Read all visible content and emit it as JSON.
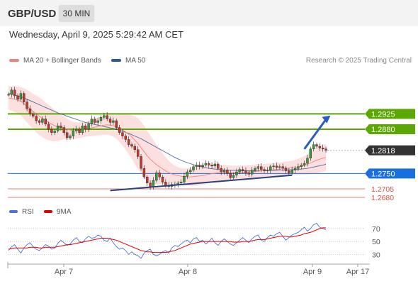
{
  "header": {
    "symbol": "GBP/USD",
    "timeframe": "30 MIN",
    "datetime": "Wednesday, April 9, 2025 5:29:42 AM CET",
    "credit": "Research © 2025 Trading Central"
  },
  "legend": {
    "ma20": "MA 20 + Bollinger Bands",
    "ma50": "MA 50"
  },
  "colors": {
    "price_up": "#3a9a3a",
    "price_down": "#c0392b",
    "green_level": "#5aa800",
    "blue_level": "#1a6fdf",
    "red_level": "#e74c3c",
    "current": "#333333",
    "ma20": "#f08080",
    "ma50": "#2f5597",
    "band": "#fbdada",
    "rsi": "#4a74d9",
    "rsi_ma": "#e00000"
  },
  "chart_data": [
    {
      "type": "line",
      "y_range": [
        1.2655,
        1.303
      ],
      "x_labels": [
        "Apr 7",
        "Apr 8",
        "Apr 9",
        "Apr 17"
      ],
      "levels": [
        {
          "value": 1.2925,
          "label": "1.2925",
          "style": "green"
        },
        {
          "value": 1.288,
          "label": "1.2880",
          "style": "green"
        },
        {
          "value": 1.2818,
          "label": "1.2818",
          "style": "current"
        },
        {
          "value": 1.275,
          "label": "1.2750",
          "style": "blue"
        },
        {
          "value": 1.2705,
          "label": "1.2705",
          "style": "red"
        },
        {
          "value": 1.268,
          "label": "1.2680",
          "style": "red"
        }
      ],
      "price": [
        1.2982,
        1.2995,
        1.2978,
        1.2968,
        1.2985,
        1.296,
        1.294,
        1.2925,
        1.2918,
        1.2905,
        1.29,
        1.291,
        1.2895,
        1.288,
        1.287,
        1.2875,
        1.289,
        1.2885,
        1.287,
        1.2855,
        1.286,
        1.2875,
        1.288,
        1.287,
        1.289,
        1.288,
        1.2895,
        1.291,
        1.29,
        1.2905,
        1.2915,
        1.292,
        1.291,
        1.29,
        1.2905,
        1.2885,
        1.287,
        1.286,
        1.285,
        1.2835,
        1.283,
        1.282,
        1.28,
        1.2765,
        1.274,
        1.2722,
        1.271,
        1.273,
        1.2752,
        1.274,
        1.2725,
        1.2715,
        1.2712,
        1.2718,
        1.2716,
        1.2722,
        1.2725,
        1.2742,
        1.2755,
        1.276,
        1.277,
        1.2775,
        1.277,
        1.2775,
        1.278,
        1.2775,
        1.2772,
        1.2778,
        1.2765,
        1.2755,
        1.276,
        1.275,
        1.2738,
        1.2745,
        1.2755,
        1.2762,
        1.2758,
        1.2752,
        1.2748,
        1.276,
        1.2765,
        1.277,
        1.2762,
        1.2758,
        1.276,
        1.277,
        1.2772,
        1.2768,
        1.277,
        1.2766,
        1.2758,
        1.2752,
        1.276,
        1.2765,
        1.277,
        1.2775,
        1.278,
        1.2795,
        1.2822,
        1.2835,
        1.283,
        1.2825,
        1.2822,
        1.2818
      ],
      "ma20": [
        1.2972,
        1.297,
        1.2968,
        1.2965,
        1.2962,
        1.2955,
        1.2948,
        1.294,
        1.2932,
        1.2925,
        1.2918,
        1.2912,
        1.2905,
        1.29,
        1.2895,
        1.289,
        1.2888,
        1.2886,
        1.2884,
        1.288,
        1.2878,
        1.2876,
        1.2876,
        1.2877,
        1.2878,
        1.288,
        1.2882,
        1.2884,
        1.2886,
        1.2888,
        1.289,
        1.2892,
        1.2893,
        1.2892,
        1.289,
        1.2887,
        1.2883,
        1.2878,
        1.2872,
        1.2865,
        1.2857,
        1.2848,
        1.2838,
        1.2826,
        1.2814,
        1.2802,
        1.2792,
        1.2784,
        1.2776,
        1.277,
        1.2764,
        1.2758,
        1.2753,
        1.2749,
        1.2746,
        1.2744,
        1.2742,
        1.2741,
        1.274,
        1.274,
        1.2741,
        1.2742,
        1.2743,
        1.2744,
        1.2746,
        1.2748,
        1.275,
        1.2751,
        1.2752,
        1.2752,
        1.2753,
        1.2753,
        1.2753,
        1.2753,
        1.2753,
        1.2754,
        1.2754,
        1.2754,
        1.2755,
        1.2755,
        1.2756,
        1.2757,
        1.2758,
        1.2758,
        1.2759,
        1.276,
        1.2761,
        1.2762,
        1.2763,
        1.2764,
        1.2765,
        1.2766,
        1.2767,
        1.2768,
        1.277,
        1.2772,
        1.2774,
        1.2777,
        1.2781,
        1.2785,
        1.2789,
        1.2792,
        1.2795,
        1.2797
      ],
      "ma50": [
        1.2985,
        1.2983,
        1.2981,
        1.2978,
        1.2975,
        1.2972,
        1.2968,
        1.2964,
        1.296,
        1.2956,
        1.2952,
        1.2948,
        1.2944,
        1.294,
        1.2936,
        1.2932,
        1.2928,
        1.2925,
        1.2922,
        1.2918,
        1.2915,
        1.2912,
        1.2909,
        1.2906,
        1.2903,
        1.29,
        1.2898,
        1.2896,
        1.2894,
        1.2892,
        1.289,
        1.2888,
        1.2886,
        1.2884,
        1.2882,
        1.288,
        1.2877,
        1.2874,
        1.2871,
        1.2868,
        1.2864,
        1.286,
        1.2856,
        1.2852,
        1.2847,
        1.2842,
        1.2837,
        1.2832,
        1.2827,
        1.2822,
        1.2817,
        1.2812,
        1.2807,
        1.2802,
        1.2797,
        1.2793,
        1.2789,
        1.2785,
        1.2782,
        1.2779,
        1.2776,
        1.2773,
        1.2771,
        1.2769,
        1.2767,
        1.2765,
        1.2764,
        1.2763,
        1.2762,
        1.2761,
        1.276,
        1.276,
        1.2759,
        1.2759,
        1.2759,
        1.2758,
        1.2758,
        1.2758,
        1.2758,
        1.2758,
        1.2758,
        1.2758,
        1.2758,
        1.2758,
        1.2758,
        1.2759,
        1.2759,
        1.2759,
        1.276,
        1.276,
        1.276,
        1.2761,
        1.2761,
        1.2762,
        1.2762,
        1.2763,
        1.2764,
        1.2765,
        1.2767,
        1.2769,
        1.2771,
        1.2773,
        1.2775,
        1.2777
      ],
      "band_width": [
        0.0035,
        0.0036,
        0.0038,
        0.004,
        0.0042,
        0.0045,
        0.0048,
        0.005,
        0.0052,
        0.0054,
        0.0055,
        0.0055,
        0.0054,
        0.0052,
        0.005,
        0.0046,
        0.0042,
        0.0038,
        0.0034,
        0.003,
        0.0028,
        0.0026,
        0.0024,
        0.0023,
        0.0022,
        0.0022,
        0.0023,
        0.0024,
        0.0025,
        0.0026,
        0.0027,
        0.0028,
        0.0029,
        0.003,
        0.0032,
        0.0035,
        0.004,
        0.0046,
        0.0052,
        0.0058,
        0.0064,
        0.007,
        0.0074,
        0.0076,
        0.0076,
        0.0074,
        0.007,
        0.0064,
        0.0058,
        0.0052,
        0.0046,
        0.004,
        0.0035,
        0.003,
        0.0027,
        0.0025,
        0.0024,
        0.0024,
        0.0025,
        0.0026,
        0.0027,
        0.0028,
        0.0028,
        0.0028,
        0.0028,
        0.0027,
        0.0026,
        0.0025,
        0.0024,
        0.0023,
        0.0022,
        0.0021,
        0.002,
        0.002,
        0.002,
        0.002,
        0.002,
        0.002,
        0.002,
        0.002,
        0.002,
        0.002,
        0.002,
        0.002,
        0.002,
        0.002,
        0.002,
        0.002,
        0.002,
        0.002,
        0.002,
        0.002,
        0.0021,
        0.0022,
        0.0023,
        0.0025,
        0.0027,
        0.003,
        0.0033,
        0.0036,
        0.0038,
        0.0039,
        0.004,
        0.004
      ],
      "trendline": [
        {
          "i": 33,
          "v": 1.27
        },
        {
          "i": 92,
          "v": 1.2745
        }
      ],
      "forecast_arrow": [
        {
          "i": 96,
          "v": 1.2822
        },
        {
          "i": 104,
          "v": 1.292
        }
      ]
    },
    {
      "type": "line",
      "title": "RSI",
      "series": [
        {
          "name": "RSI"
        },
        {
          "name": "9MA"
        }
      ],
      "y_ticks": [
        70,
        50,
        30
      ],
      "y_range": [
        15,
        83
      ],
      "rsi": [
        36,
        42,
        45,
        38,
        32,
        40,
        45,
        48,
        42,
        38,
        36,
        40,
        45,
        43,
        38,
        40,
        47,
        52,
        48,
        44,
        46,
        52,
        56,
        50,
        48,
        54,
        58,
        55,
        56,
        60,
        58,
        52,
        50,
        55,
        48,
        42,
        38,
        40,
        36,
        30,
        34,
        30,
        28,
        24,
        32,
        36,
        38,
        30,
        28,
        30,
        34,
        36,
        32,
        40,
        44,
        42,
        46,
        50,
        52,
        48,
        54,
        56,
        50,
        52,
        46,
        50,
        55,
        48,
        44,
        50,
        54,
        50,
        46,
        44,
        48,
        52,
        56,
        52,
        48,
        54,
        58,
        60,
        52,
        50,
        56,
        60,
        58,
        62,
        64,
        58,
        52,
        56,
        60,
        62,
        64,
        68,
        72,
        66,
        70,
        76,
        78,
        72,
        70,
        68
      ],
      "rsi_ma": [
        38,
        39,
        40,
        40,
        40,
        40,
        40,
        41,
        41,
        41,
        40,
        40,
        41,
        41,
        41,
        41,
        42,
        43,
        44,
        45,
        45,
        46,
        47,
        48,
        49,
        50,
        51,
        52,
        53,
        54,
        55,
        55,
        55,
        54,
        53,
        52,
        50,
        48,
        46,
        44,
        42,
        40,
        38,
        36,
        35,
        34,
        34,
        33,
        33,
        33,
        33,
        33,
        34,
        35,
        36,
        38,
        40,
        42,
        44,
        46,
        47,
        48,
        49,
        50,
        50,
        50,
        50,
        50,
        50,
        50,
        50,
        50,
        50,
        49,
        49,
        49,
        50,
        50,
        50,
        51,
        52,
        53,
        53,
        53,
        54,
        55,
        56,
        57,
        58,
        58,
        58,
        57,
        57,
        58,
        59,
        60,
        62,
        63,
        64,
        66,
        68,
        70,
        71,
        71
      ]
    }
  ]
}
